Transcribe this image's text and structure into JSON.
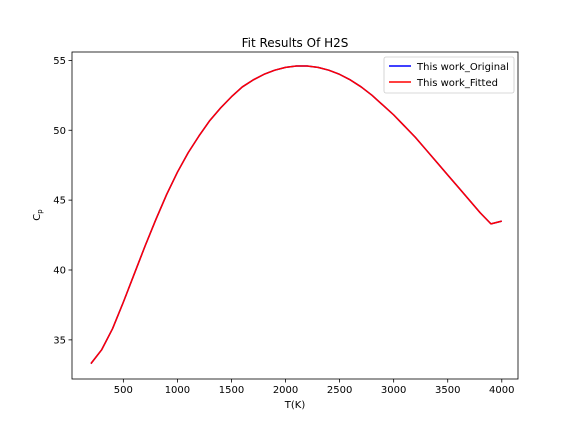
{
  "chart_data": {
    "type": "line",
    "title": "Fit Results Of H2S",
    "xlabel": "T(K)",
    "ylabel_main": "C",
    "ylabel_sub": "p",
    "xlim": [
      25,
      4150
    ],
    "ylim": [
      32.2,
      55.6
    ],
    "xticks": [
      500,
      1000,
      1500,
      2000,
      2500,
      3000,
      3500,
      4000
    ],
    "yticks": [
      35,
      40,
      45,
      50,
      55
    ],
    "legend_position": "top-right",
    "grid": false,
    "colors": {
      "original": "#0000ff",
      "fitted": "#ff0000"
    },
    "x": [
      200,
      300,
      400,
      500,
      600,
      700,
      800,
      900,
      1000,
      1100,
      1200,
      1300,
      1400,
      1500,
      1600,
      1700,
      1800,
      1900,
      2000,
      2100,
      2200,
      2300,
      2400,
      2500,
      2600,
      2700,
      2800,
      2900,
      3000,
      3100,
      3200,
      3300,
      3400,
      3500,
      3600,
      3700,
      3800,
      3900,
      4000
    ],
    "series": [
      {
        "name": "This work_Original",
        "values": [
          33.3,
          34.3,
          35.8,
          37.7,
          39.7,
          41.7,
          43.6,
          45.4,
          47.0,
          48.4,
          49.6,
          50.7,
          51.6,
          52.4,
          53.1,
          53.6,
          54.0,
          54.3,
          54.5,
          54.6,
          54.6,
          54.5,
          54.3,
          54.0,
          53.6,
          53.1,
          52.5,
          51.8,
          51.1,
          50.3,
          49.5,
          48.6,
          47.7,
          46.8,
          45.9,
          45.0,
          44.1,
          43.3,
          43.5
        ]
      },
      {
        "name": "This work_Fitted",
        "values": [
          33.3,
          34.3,
          35.8,
          37.7,
          39.7,
          41.7,
          43.6,
          45.4,
          47.0,
          48.4,
          49.6,
          50.7,
          51.6,
          52.4,
          53.1,
          53.6,
          54.0,
          54.3,
          54.5,
          54.6,
          54.6,
          54.5,
          54.3,
          54.0,
          53.6,
          53.1,
          52.5,
          51.8,
          51.1,
          50.3,
          49.5,
          48.6,
          47.7,
          46.8,
          45.9,
          45.0,
          44.1,
          43.3,
          43.5
        ]
      }
    ]
  }
}
